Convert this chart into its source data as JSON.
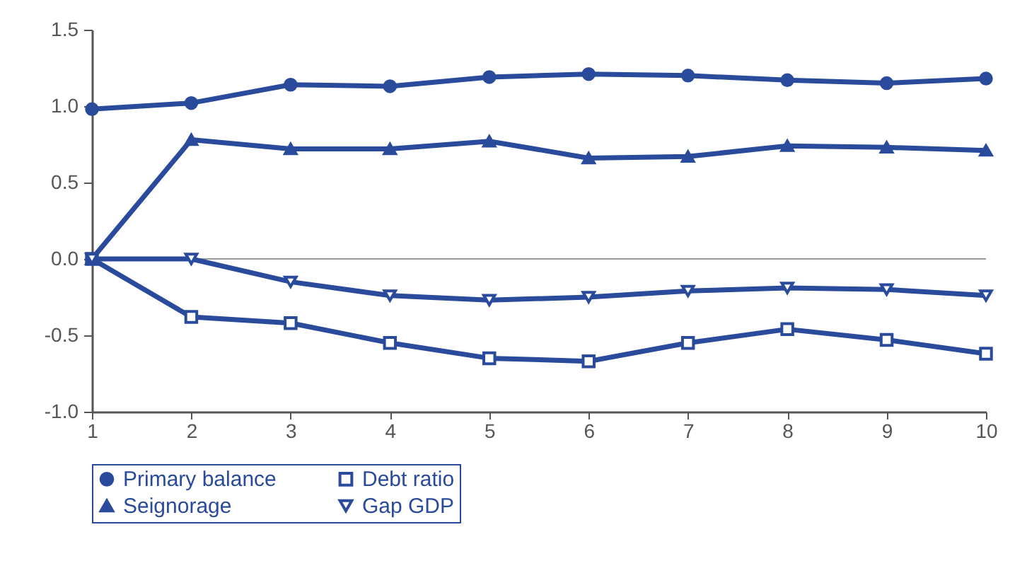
{
  "chart_data": {
    "type": "line",
    "x": [
      1,
      2,
      3,
      4,
      5,
      6,
      7,
      8,
      9,
      10
    ],
    "series": [
      {
        "name": "Primary balance",
        "color": "#2a4b9b",
        "marker": "circle",
        "values": [
          0.98,
          1.02,
          1.14,
          1.13,
          1.19,
          1.21,
          1.2,
          1.17,
          1.15,
          1.18
        ]
      },
      {
        "name": "Debt ratio",
        "color": "#2a4b9b",
        "marker": "square",
        "values": [
          0,
          -0.38,
          -0.42,
          -0.55,
          -0.65,
          -0.67,
          -0.55,
          -0.46,
          -0.53,
          -0.62
        ]
      },
      {
        "name": "Seignorage",
        "color": "#2a4b9b",
        "marker": "triangle",
        "values": [
          0,
          0.78,
          0.72,
          0.72,
          0.77,
          0.66,
          0.67,
          0.74,
          0.73,
          0.71
        ]
      },
      {
        "name": "Gap GDP",
        "color": "#2a4b9b",
        "marker": "triangle-down",
        "values": [
          0,
          0,
          -0.15,
          -0.24,
          -0.27,
          -0.25,
          -0.21,
          -0.19,
          -0.2,
          -0.24
        ]
      }
    ],
    "xlim": [
      1,
      10
    ],
    "xticks": [
      1,
      2,
      3,
      4,
      5,
      6,
      7,
      8,
      9,
      10
    ],
    "ylim": [
      -1,
      1.5
    ],
    "yticks": [
      {
        "value": -1,
        "label": "-1.0"
      },
      -0.5,
      {
        "value": 0,
        "label": "0.0"
      },
      0.5,
      {
        "value": 1,
        "label": "1.0"
      },
      1.5
    ],
    "ref_lines": [
      {
        "axis": "y",
        "value": 0,
        "color": "#9a9a9a"
      }
    ],
    "legend": "bottom",
    "line_style": "solid"
  }
}
